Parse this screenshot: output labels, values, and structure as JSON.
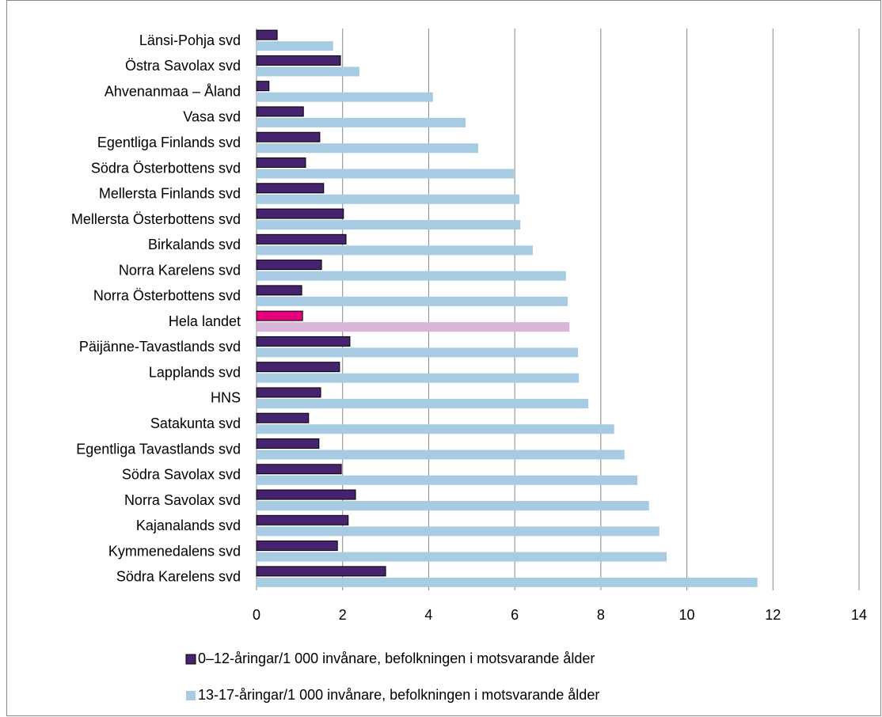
{
  "chart_data": {
    "type": "hbar",
    "categories": [
      "Länsi-Pohja svd",
      "Östra Savolax svd",
      "Ahvenanmaa – Åland",
      "Vasa svd",
      "Egentliga Finlands svd",
      "Södra Österbottens svd",
      "Mellersta Finlands svd",
      "Mellersta Österbottens svd",
      "Birkalands svd",
      "Norra Karelens svd",
      "Norra Österbottens svd",
      "Hela landet",
      "Päijänne-Tavastlands svd",
      "Lapplands svd",
      "HNS",
      "Satakunta svd",
      "Egentliga Tavastlands svd",
      "Södra Savolax svd",
      "Norra Savolax svd",
      "Kajanalands svd",
      "Kymmenedalens svd",
      "Södra Karelens svd"
    ],
    "series": [
      {
        "name": "0–12-åringar/1 000 invånare, befolkningen i motsvarande ålder",
        "color": "#45236f",
        "values": [
          0.48,
          1.95,
          0.29,
          1.09,
          1.47,
          1.14,
          1.56,
          2.02,
          2.08,
          1.51,
          1.05,
          1.07,
          2.17,
          1.93,
          1.49,
          1.21,
          1.45,
          1.97,
          2.3,
          2.13,
          1.88,
          3.0
        ]
      },
      {
        "name": "13-17-åringar/1 000 invånare, befolkningen i motsvarande ålder",
        "color": "#a8cbe4",
        "values": [
          1.78,
          2.39,
          4.1,
          4.86,
          5.15,
          5.98,
          6.11,
          6.13,
          6.42,
          7.19,
          7.23,
          7.27,
          7.47,
          7.49,
          7.71,
          8.31,
          8.55,
          8.85,
          9.12,
          9.36,
          9.53,
          11.64
        ]
      }
    ],
    "highlight": {
      "category": "Hela landet",
      "colors": [
        "#e5007d",
        "#d9b5d9"
      ]
    },
    "xlim": [
      0,
      14
    ],
    "xticks": [
      0,
      2,
      4,
      6,
      8,
      10,
      12,
      14
    ],
    "grid": true,
    "legend": "bottom"
  }
}
